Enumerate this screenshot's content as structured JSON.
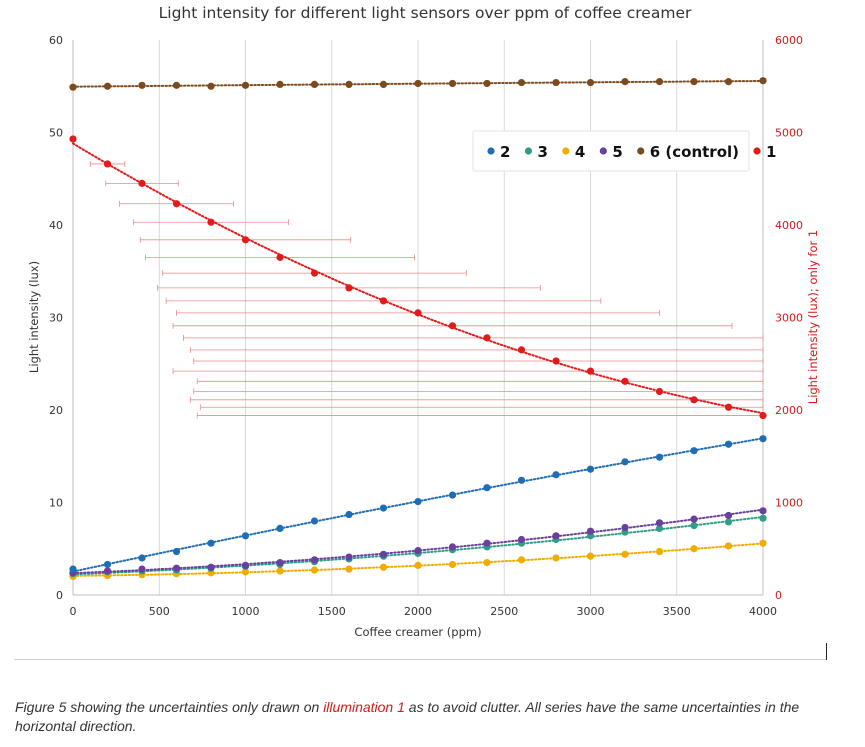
{
  "chart_data": {
    "type": "scatter",
    "title": "Light intensity for different light sensors over ppm of coffee creamer",
    "xlabel": "Coffee creamer (ppm)",
    "ylabel": "Light intensity (lux)",
    "y2label": "Light intensity (lux); only for 1",
    "xlim": [
      0,
      4000
    ],
    "ylim": [
      0,
      60
    ],
    "y2lim": [
      0,
      6000
    ],
    "xticks": [
      0,
      500,
      1000,
      1500,
      2000,
      2500,
      3000,
      3500,
      4000
    ],
    "yticks": [
      0,
      10,
      20,
      30,
      40,
      50,
      60
    ],
    "y2ticks": [
      0,
      1000,
      2000,
      3000,
      4000,
      5000,
      6000
    ],
    "grid": "vertical",
    "legend_position": "top-right",
    "x": [
      0,
      200,
      400,
      600,
      800,
      1000,
      1200,
      1400,
      1600,
      1800,
      2000,
      2200,
      2400,
      2600,
      2800,
      3000,
      3200,
      3400,
      3600,
      3800,
      4000
    ],
    "series": [
      {
        "name": "2",
        "axis": "left",
        "color": "#1f6eb4",
        "values": [
          2.8,
          3.3,
          4.0,
          4.7,
          5.6,
          6.4,
          7.2,
          8.0,
          8.7,
          9.4,
          10.1,
          10.8,
          11.6,
          12.4,
          13.0,
          13.6,
          14.4,
          14.9,
          15.6,
          16.3,
          16.9
        ]
      },
      {
        "name": "3",
        "axis": "left",
        "color": "#2e9e86",
        "values": [
          2.3,
          2.5,
          2.6,
          2.7,
          2.9,
          3.1,
          3.3,
          3.6,
          3.9,
          4.2,
          4.5,
          4.9,
          5.2,
          5.6,
          6.0,
          6.4,
          6.8,
          7.2,
          7.5,
          7.9,
          8.3
        ]
      },
      {
        "name": "4",
        "axis": "left",
        "color": "#f0ac00",
        "values": [
          2.0,
          2.1,
          2.2,
          2.3,
          2.4,
          2.5,
          2.6,
          2.7,
          2.8,
          3.0,
          3.2,
          3.3,
          3.5,
          3.8,
          4.0,
          4.2,
          4.4,
          4.7,
          5.0,
          5.3,
          5.6
        ]
      },
      {
        "name": "5",
        "axis": "left",
        "color": "#6a3f9e",
        "values": [
          2.4,
          2.6,
          2.8,
          2.9,
          3.0,
          3.2,
          3.5,
          3.8,
          4.1,
          4.4,
          4.8,
          5.2,
          5.6,
          6.0,
          6.4,
          6.9,
          7.3,
          7.8,
          8.2,
          8.6,
          9.1
        ]
      },
      {
        "name": "6 (control)",
        "axis": "left",
        "color": "#7b4a1e",
        "values": [
          54.9,
          55.0,
          55.1,
          55.1,
          55.0,
          55.1,
          55.2,
          55.2,
          55.2,
          55.2,
          55.3,
          55.3,
          55.3,
          55.4,
          55.4,
          55.4,
          55.5,
          55.5,
          55.5,
          55.5,
          55.6
        ]
      },
      {
        "name": "1",
        "axis": "right",
        "color": "#e11b1b",
        "values": [
          4930,
          4660,
          4450,
          4230,
          4030,
          3840,
          3650,
          3480,
          3320,
          3180,
          3050,
          2910,
          2780,
          2650,
          2530,
          2420,
          2310,
          2200,
          2110,
          2030,
          1940
        ],
        "x_error": [
          0,
          100,
          210,
          330,
          450,
          610,
          780,
          880,
          1110,
          1260,
          1400,
          1620,
          1760,
          1920,
          2100,
          2420,
          2480,
          2700,
          2920,
          3060,
          3280
        ]
      }
    ]
  },
  "caption": {
    "text_before": "Figure 5 showing the uncertainties only drawn on ",
    "highlight": "illumination 1",
    "text_after": " as to avoid clutter. All series have the same uncertainties in the horizontal direction."
  }
}
